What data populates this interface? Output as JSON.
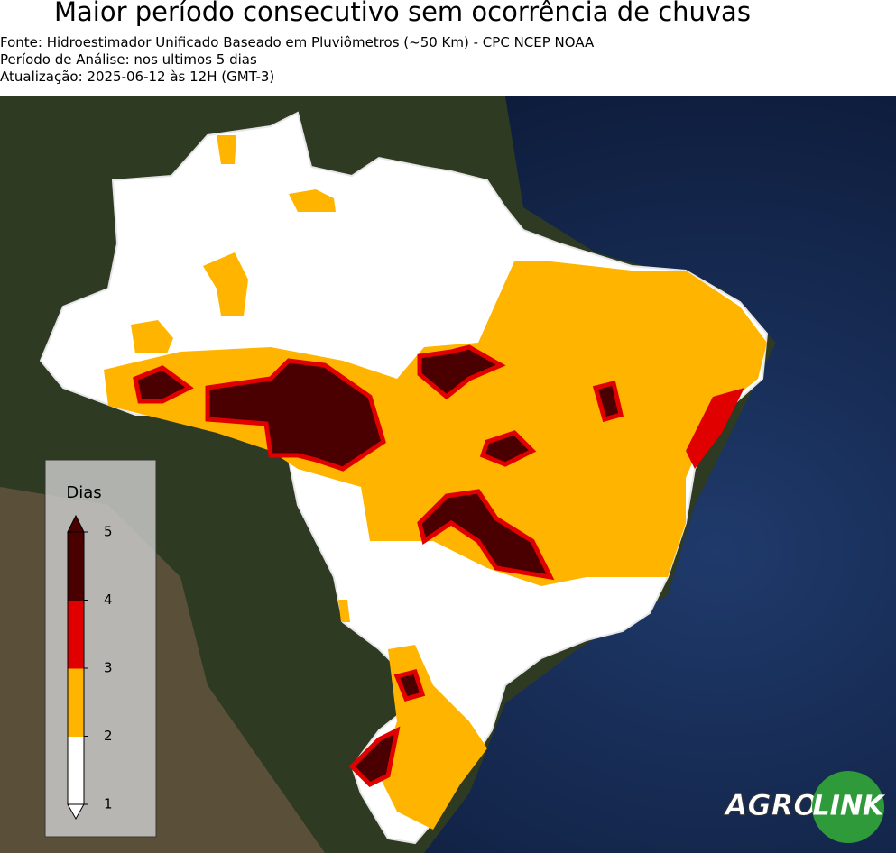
{
  "header": {
    "title": "Maior período consecutivo sem ocorrência de chuvas",
    "lines": [
      "Fonte: Hidroestimador Unificado Baseado em Pluviômetros (~50 Km) - CPC NCEP NOAA",
      "Período de Análise: nos ultimos 5 dias",
      "Atualização: 2025-06-12 às 12H (GMT-3)"
    ]
  },
  "legend": {
    "title": "Dias",
    "ticks": [
      1,
      2,
      3,
      4,
      5
    ],
    "colors": [
      "#ffffff",
      "#ffb400",
      "#e00000",
      "#4a0000"
    ]
  },
  "logo": {
    "left": "AGRO",
    "right": "LINK"
  }
}
